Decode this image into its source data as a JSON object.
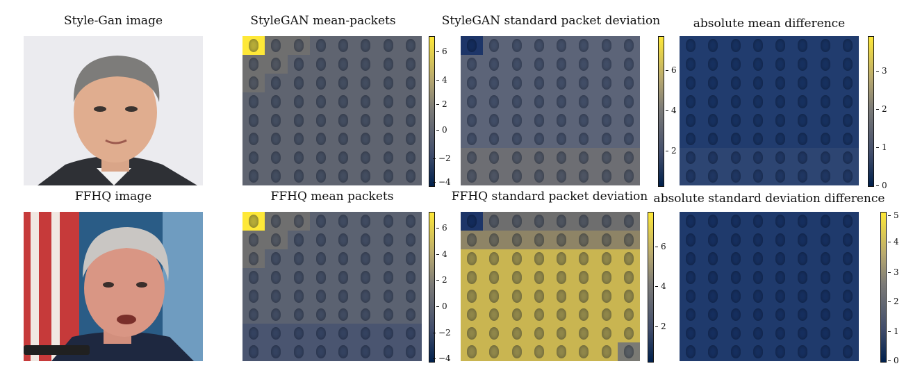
{
  "top": {
    "photo_title": "Style-Gan image",
    "mean_title": "StyleGAN mean-packets",
    "std_title": "StyleGAN standard packet deviation",
    "diff_title": "absolute mean difference",
    "mean_ticks": [
      "6",
      "4",
      "2",
      "0",
      "−2",
      "−4"
    ],
    "std_ticks": [
      "6",
      "4",
      "2"
    ],
    "diff_ticks": [
      "3",
      "2",
      "1",
      "0"
    ]
  },
  "bottom": {
    "photo_title": "FFHQ image",
    "mean_title": "FFHQ mean packets",
    "std_title": "FFHQ standard packet deviation",
    "diff_title": "absolute standard deviation difference",
    "mean_ticks": [
      "6",
      "4",
      "2",
      "0",
      "−2",
      "−4"
    ],
    "std_ticks": [
      "6",
      "4",
      "2"
    ],
    "diff_ticks": [
      "5",
      "4",
      "3",
      "2",
      "1",
      "0"
    ]
  },
  "colormap": "cividis",
  "colors": {
    "dark": "#00204c",
    "mid": "#7c7b78",
    "bright": "#fee838"
  }
}
